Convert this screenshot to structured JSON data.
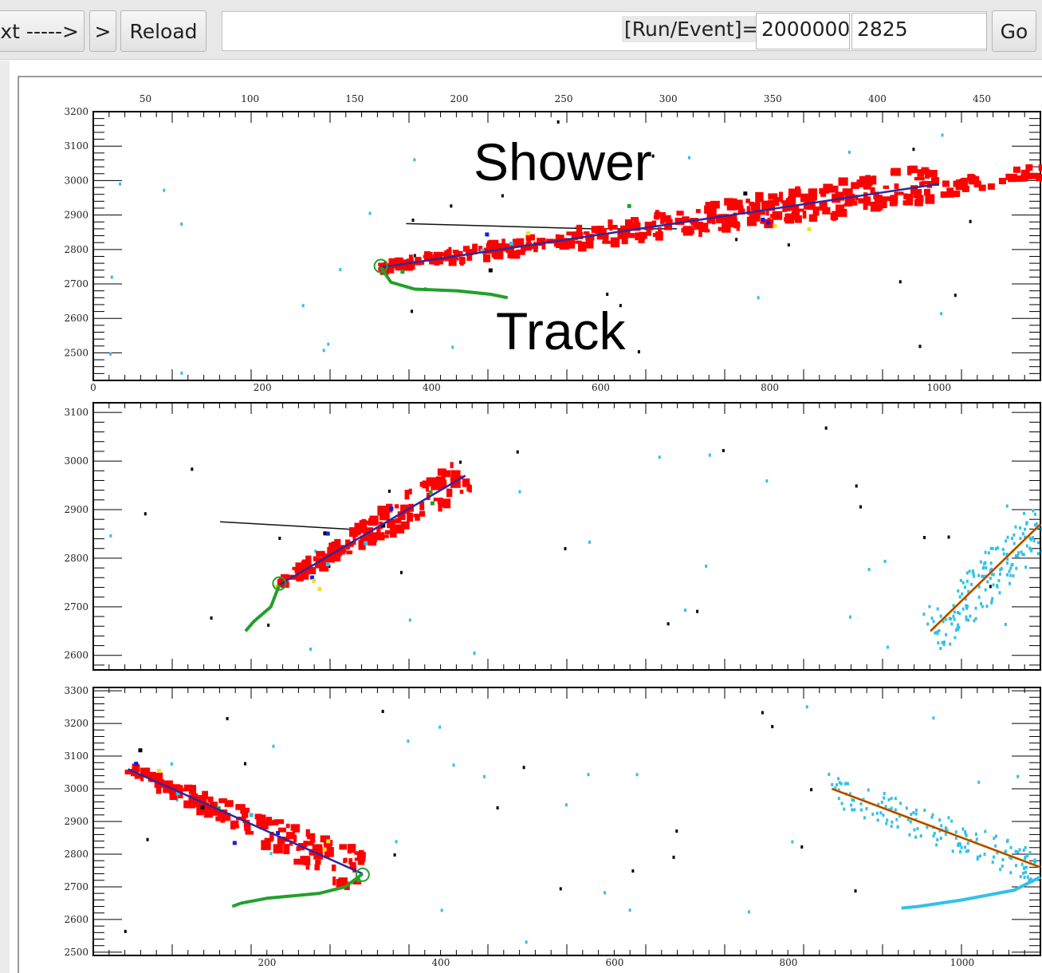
{
  "toolbar": {
    "next_label": "xt ----->",
    "step_label": ">",
    "reload_label": "Reload",
    "run_event_label": "[Run/Event]=",
    "run_value": "2000000(",
    "event_value": "2825",
    "go_label": "Go"
  },
  "annotations": {
    "shower": "Shower",
    "track": "Track"
  },
  "colors": {
    "shower": "#ff0000",
    "track": "#22a02a",
    "reco_line": "#2a2aa0",
    "faint_hits": "#33c0e8",
    "text_hits": "#000000"
  },
  "panels": [
    {
      "top_axis": {
        "min": 25,
        "max": 478,
        "ticks": [
          50,
          100,
          150,
          200,
          250,
          300,
          350,
          400,
          450
        ]
      },
      "bottom_axis": {
        "min": 0,
        "max": 1120,
        "ticks": [
          0,
          200,
          400,
          600,
          800,
          1000
        ]
      },
      "y_axis": {
        "min": 2420,
        "max": 3200,
        "ticks": [
          2500,
          2600,
          2700,
          2800,
          2900,
          3000,
          3100,
          3200
        ]
      },
      "shower_line": {
        "from": [
          340,
          2748
        ],
        "to": [
          1000,
          2990
        ]
      },
      "faint_line": [
        [
          370,
          2875
        ],
        [
          590,
          2860
        ],
        [
          690,
          2860
        ]
      ],
      "track_path": [
        [
          340,
          2748
        ],
        [
          352,
          2705
        ],
        [
          380,
          2685
        ],
        [
          430,
          2680
        ],
        [
          470,
          2670
        ],
        [
          490,
          2660
        ]
      ],
      "track_vertex": [
        340,
        2752
      ],
      "shower_extension": [
        [
          1000,
          2980
        ],
        [
          1120,
          3040
        ]
      ]
    },
    {
      "bottom_axis": {
        "min": 0,
        "max": 1120,
        "ticks": []
      },
      "y_axis": {
        "min": 2570,
        "max": 3120,
        "ticks": [
          2600,
          2700,
          2800,
          2900,
          3000,
          3100
        ]
      },
      "shower_line": {
        "from": [
          220,
          2745
        ],
        "to": [
          440,
          2970
        ]
      },
      "faint_line": [
        [
          150,
          2875
        ],
        [
          300,
          2860
        ],
        [
          320,
          2855
        ]
      ],
      "track_path": [
        [
          220,
          2745
        ],
        [
          210,
          2700
        ],
        [
          190,
          2670
        ],
        [
          180,
          2650
        ]
      ],
      "track_vertex": [
        220,
        2748
      ],
      "secondary_line": {
        "from": [
          990,
          2650
        ],
        "to": [
          1120,
          2870
        ]
      }
    },
    {
      "bottom_axis": {
        "min": 0,
        "max": 1090,
        "ticks": [
          200,
          400,
          600,
          800,
          1000
        ]
      },
      "y_axis": {
        "min": 2490,
        "max": 3310,
        "ticks": [
          2500,
          2600,
          2700,
          2800,
          2900,
          3000,
          3100,
          3200,
          3300
        ]
      },
      "shower_line": {
        "from": [
          40,
          3060
        ],
        "to": [
          310,
          2740
        ]
      },
      "track_path": [
        [
          310,
          2740
        ],
        [
          290,
          2700
        ],
        [
          260,
          2680
        ],
        [
          200,
          2665
        ],
        [
          170,
          2650
        ],
        [
          160,
          2640
        ]
      ],
      "track_vertex": [
        310,
        2737
      ],
      "secondary_line": {
        "from": [
          850,
          3000
        ],
        "to": [
          1090,
          2760
        ]
      },
      "secondary_track": [
        [
          1090,
          2730
        ],
        [
          1060,
          2690
        ],
        [
          1000,
          2660
        ],
        [
          950,
          2640
        ],
        [
          930,
          2635
        ]
      ]
    }
  ]
}
